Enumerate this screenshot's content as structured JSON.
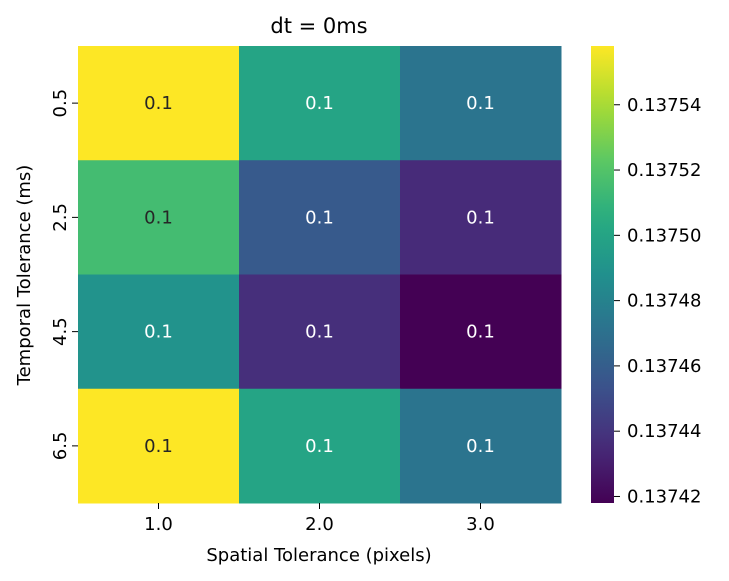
{
  "chart_data": {
    "type": "heatmap",
    "title": "dt = 0ms",
    "xlabel": "Spatial Tolerance (pixels)",
    "ylabel": "Temporal Tolerance (ms)",
    "x_categories": [
      "1.0",
      "2.0",
      "3.0"
    ],
    "y_categories": [
      "0.5",
      "2.5",
      "4.5",
      "6.5"
    ],
    "values": [
      [
        0.137558,
        0.1375,
        0.137472
      ],
      [
        0.137515,
        0.137458,
        0.137435
      ],
      [
        0.13749,
        0.137437,
        0.137418
      ],
      [
        0.137558,
        0.1375,
        0.137472
      ]
    ],
    "annotations": [
      [
        "0.1",
        "0.1",
        "0.1"
      ],
      [
        "0.1",
        "0.1",
        "0.1"
      ],
      [
        "0.1",
        "0.1",
        "0.1"
      ],
      [
        "0.1",
        "0.1",
        "0.1"
      ]
    ],
    "colorbar": {
      "colormap": "viridis",
      "range": [
        0.137418,
        0.137558
      ],
      "ticks": [
        "0.13742",
        "0.13744",
        "0.13746",
        "0.13748",
        "0.13750",
        "0.13752",
        "0.13754"
      ]
    }
  }
}
